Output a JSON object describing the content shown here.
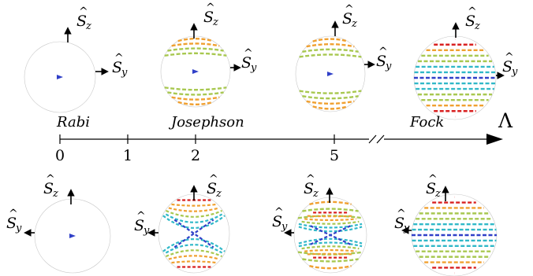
{
  "regime_labels": {
    "rabi": "Rabi",
    "josephson": "Josephson",
    "fock": "Fock"
  },
  "axis": {
    "label": "Λ",
    "ticks": [
      {
        "value": 0,
        "label": "0"
      },
      {
        "value": 1,
        "label": "1"
      },
      {
        "value": 2,
        "label": "2"
      },
      {
        "value": 5,
        "label": "5"
      }
    ],
    "break_marker": "//"
  },
  "operators": {
    "sz": {
      "base": "S",
      "hat": "^",
      "sub": "z"
    },
    "sy": {
      "base": "S",
      "hat": "^",
      "sub": "y"
    }
  },
  "colors": {
    "low": "#3040c8",
    "mid_low": "#30b8c8",
    "mid": "#a8c850",
    "mid_high": "#f0a030",
    "high": "#d82020"
  },
  "spheres": {
    "top": [
      {
        "id": "top-rabi",
        "regime": "Rabi",
        "lambda": 0,
        "pattern": "rabi"
      },
      {
        "id": "top-josephson",
        "regime": "Josephson",
        "lambda": 2,
        "pattern": "josephson-top"
      },
      {
        "id": "top-5",
        "regime": "",
        "lambda": 5,
        "pattern": "five-top"
      },
      {
        "id": "top-fock",
        "regime": "Fock",
        "lambda": "large",
        "pattern": "fock"
      }
    ],
    "bottom": [
      {
        "id": "bottom-rabi",
        "lambda": 0,
        "pattern": "rabi"
      },
      {
        "id": "bottom-josephson",
        "lambda": 2,
        "pattern": "saddle-wide"
      },
      {
        "id": "bottom-5",
        "lambda": 5,
        "pattern": "saddle-flat"
      },
      {
        "id": "bottom-fock",
        "lambda": "large",
        "pattern": "fock"
      }
    ]
  }
}
